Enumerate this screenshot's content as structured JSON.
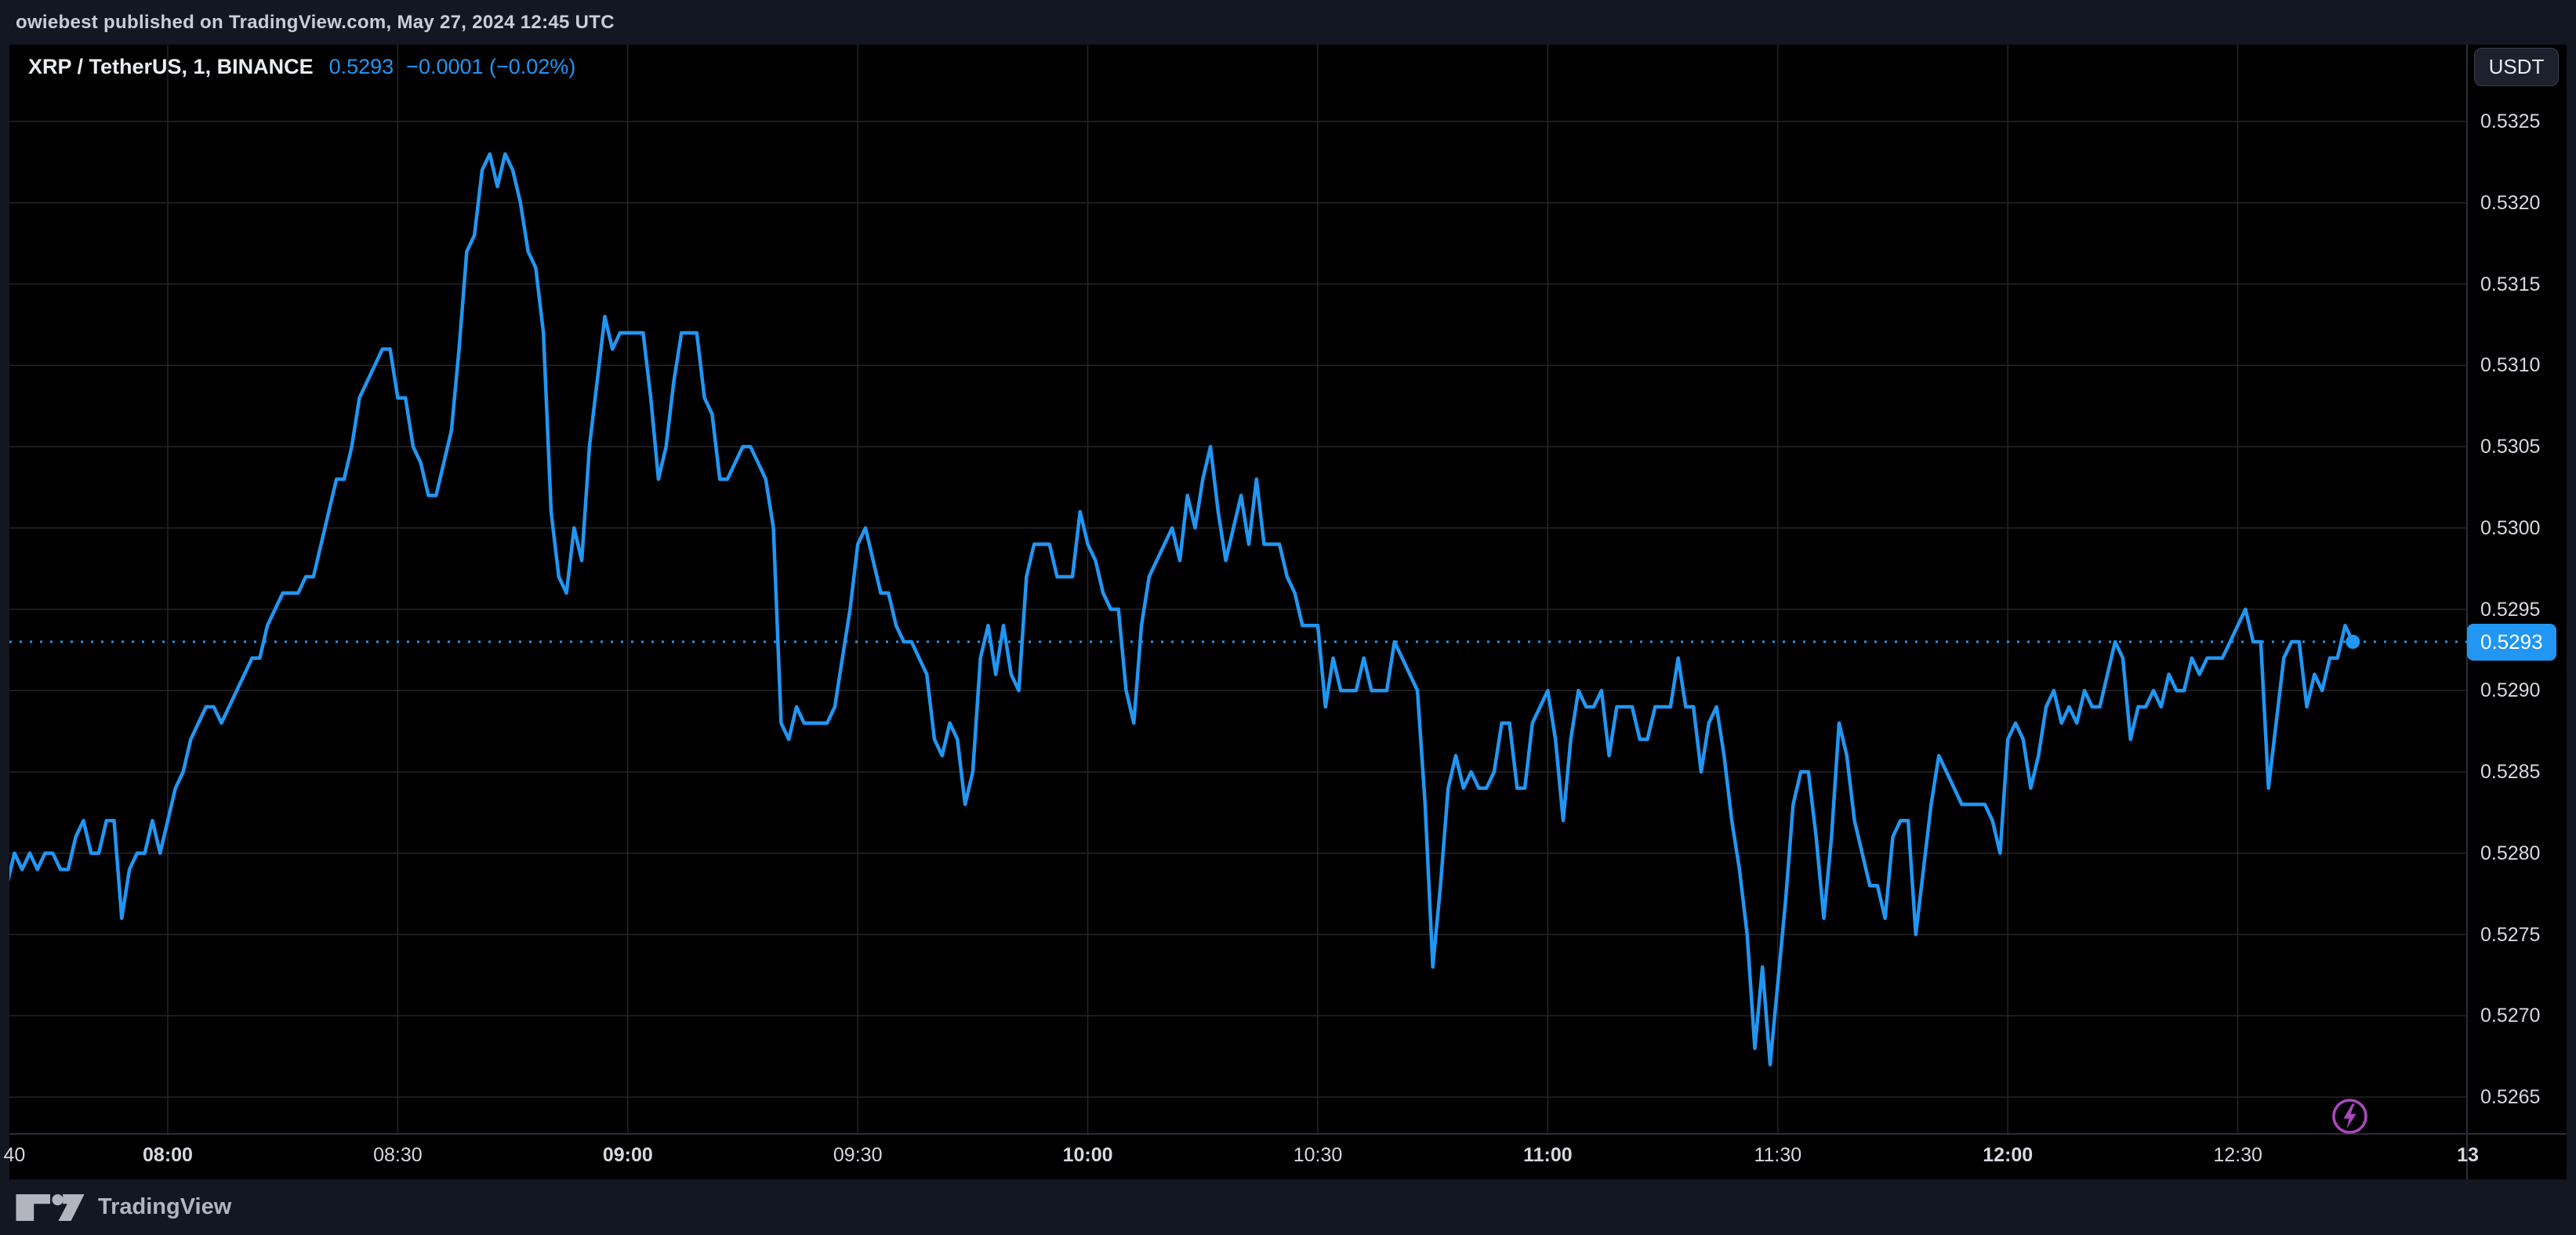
{
  "header": {
    "attribution": "owiebest published on TradingView.com, May 27, 2024 12:45 UTC"
  },
  "chart": {
    "symbol_title": "XRP / TetherUS, 1, BINANCE",
    "last_price_label": "0.5293",
    "change_label": "−0.0001 (−0.02%)",
    "currency_button_label": "USDT"
  },
  "footer": {
    "brand": "TradingView"
  },
  "chart_data": {
    "type": "line",
    "title": "XRP / TetherUS, 1, BINANCE",
    "symbol": "XRP/USDT",
    "exchange": "BINANCE",
    "interval_minutes": 1,
    "start_time": "07:38",
    "end_time": "12:45",
    "last_price": 0.5293,
    "change": -0.0001,
    "change_pct": -0.02,
    "ylim": [
      0.5263,
      0.533
    ],
    "grid": true,
    "legend_position": "top-left",
    "y_axis_ticks": [
      "0.5325",
      "0.5320",
      "0.5315",
      "0.5310",
      "0.5305",
      "0.5300",
      "0.5295",
      "0.5290",
      "0.5285",
      "0.5280",
      "0.5275",
      "0.5270",
      "0.5265"
    ],
    "x_axis_ticks": [
      {
        "label": "40",
        "time": "07:40",
        "bold": false,
        "grid": false
      },
      {
        "label": "08:00",
        "time": "08:00",
        "bold": true,
        "grid": true
      },
      {
        "label": "08:30",
        "time": "08:30",
        "bold": false,
        "grid": true
      },
      {
        "label": "09:00",
        "time": "09:00",
        "bold": true,
        "grid": true
      },
      {
        "label": "09:30",
        "time": "09:30",
        "bold": false,
        "grid": true
      },
      {
        "label": "10:00",
        "time": "10:00",
        "bold": true,
        "grid": true
      },
      {
        "label": "10:30",
        "time": "10:30",
        "bold": false,
        "grid": true
      },
      {
        "label": "11:00",
        "time": "11:00",
        "bold": true,
        "grid": true
      },
      {
        "label": "11:30",
        "time": "11:30",
        "bold": false,
        "grid": true
      },
      {
        "label": "12:00",
        "time": "12:00",
        "bold": true,
        "grid": true
      },
      {
        "label": "12:30",
        "time": "12:30",
        "bold": false,
        "grid": true
      },
      {
        "label": "13",
        "time": "13:00",
        "bold": true,
        "grid": false
      }
    ],
    "colors": {
      "line": "#2196F3",
      "label_bg": "#2196F3",
      "chart_bg": "#000000",
      "panel_bg": "#131722",
      "grid": "#232527",
      "separator": "#2a2e39",
      "axis_text": "#d6d9e0",
      "flash": "#ab47bc"
    },
    "values": [
      0.5277,
      0.5278,
      0.528,
      0.5279,
      0.528,
      0.5279,
      0.528,
      0.528,
      0.5279,
      0.5279,
      0.5281,
      0.5282,
      0.528,
      0.528,
      0.5282,
      0.5282,
      0.5276,
      0.5279,
      0.528,
      0.528,
      0.5282,
      0.528,
      0.5282,
      0.5284,
      0.5285,
      0.5287,
      0.5288,
      0.5289,
      0.5289,
      0.5288,
      0.5289,
      0.529,
      0.5291,
      0.5292,
      0.5292,
      0.5294,
      0.5295,
      0.5296,
      0.5296,
      0.5296,
      0.5297,
      0.5297,
      0.5299,
      0.5301,
      0.5303,
      0.5303,
      0.5305,
      0.5308,
      0.5309,
      0.531,
      0.5311,
      0.5311,
      0.5308,
      0.5308,
      0.5305,
      0.5304,
      0.5302,
      0.5302,
      0.5304,
      0.5306,
      0.5311,
      0.5317,
      0.5318,
      0.5322,
      0.5323,
      0.5321,
      0.5323,
      0.5322,
      0.532,
      0.5317,
      0.5316,
      0.5312,
      0.5301,
      0.5297,
      0.5296,
      0.53,
      0.5298,
      0.5305,
      0.5309,
      0.5313,
      0.5311,
      0.5312,
      0.5312,
      0.5312,
      0.5312,
      0.5308,
      0.5303,
      0.5305,
      0.5309,
      0.5312,
      0.5312,
      0.5312,
      0.5308,
      0.5307,
      0.5303,
      0.5303,
      0.5304,
      0.5305,
      0.5305,
      0.5304,
      0.5303,
      0.53,
      0.5288,
      0.5287,
      0.5289,
      0.5288,
      0.5288,
      0.5288,
      0.5288,
      0.5289,
      0.5292,
      0.5295,
      0.5299,
      0.53,
      0.5298,
      0.5296,
      0.5296,
      0.5294,
      0.5293,
      0.5293,
      0.5292,
      0.5291,
      0.5287,
      0.5286,
      0.5288,
      0.5287,
      0.5283,
      0.5285,
      0.5292,
      0.5294,
      0.5291,
      0.5294,
      0.5291,
      0.529,
      0.5297,
      0.5299,
      0.5299,
      0.5299,
      0.5297,
      0.5297,
      0.5297,
      0.5301,
      0.5299,
      0.5298,
      0.5296,
      0.5295,
      0.5295,
      0.529,
      0.5288,
      0.5294,
      0.5297,
      0.5298,
      0.5299,
      0.53,
      0.5298,
      0.5302,
      0.53,
      0.5303,
      0.5305,
      0.5301,
      0.5298,
      0.53,
      0.5302,
      0.5299,
      0.5303,
      0.5299,
      0.5299,
      0.5299,
      0.5297,
      0.5296,
      0.5294,
      0.5294,
      0.5294,
      0.5289,
      0.5292,
      0.529,
      0.529,
      0.529,
      0.5292,
      0.529,
      0.529,
      0.529,
      0.5293,
      0.5292,
      0.5291,
      0.529,
      0.5283,
      0.5273,
      0.5278,
      0.5284,
      0.5286,
      0.5284,
      0.5285,
      0.5284,
      0.5284,
      0.5285,
      0.5288,
      0.5288,
      0.5284,
      0.5284,
      0.5288,
      0.5289,
      0.529,
      0.5287,
      0.5282,
      0.5287,
      0.529,
      0.5289,
      0.5289,
      0.529,
      0.5286,
      0.5289,
      0.5289,
      0.5289,
      0.5287,
      0.5287,
      0.5289,
      0.5289,
      0.5289,
      0.5292,
      0.5289,
      0.5289,
      0.5285,
      0.5288,
      0.5289,
      0.5286,
      0.5282,
      0.5279,
      0.5275,
      0.5268,
      0.5273,
      0.5267,
      0.5272,
      0.5277,
      0.5283,
      0.5285,
      0.5285,
      0.5281,
      0.5276,
      0.5281,
      0.5288,
      0.5286,
      0.5282,
      0.528,
      0.5278,
      0.5278,
      0.5276,
      0.5281,
      0.5282,
      0.5282,
      0.5275,
      0.5279,
      0.5283,
      0.5286,
      0.5285,
      0.5284,
      0.5283,
      0.5283,
      0.5283,
      0.5283,
      0.5282,
      0.528,
      0.5287,
      0.5288,
      0.5287,
      0.5284,
      0.5286,
      0.5289,
      0.529,
      0.5288,
      0.5289,
      0.5288,
      0.529,
      0.5289,
      0.5289,
      0.5291,
      0.5293,
      0.5292,
      0.5287,
      0.5289,
      0.5289,
      0.529,
      0.5289,
      0.5291,
      0.529,
      0.529,
      0.5292,
      0.5291,
      0.5292,
      0.5292,
      0.5292,
      0.5293,
      0.5294,
      0.5295,
      0.5293,
      0.5293,
      0.5284,
      0.5288,
      0.5292,
      0.5293,
      0.5293,
      0.5289,
      0.5291,
      0.529,
      0.5292,
      0.5292,
      0.5294,
      0.5293
    ]
  }
}
